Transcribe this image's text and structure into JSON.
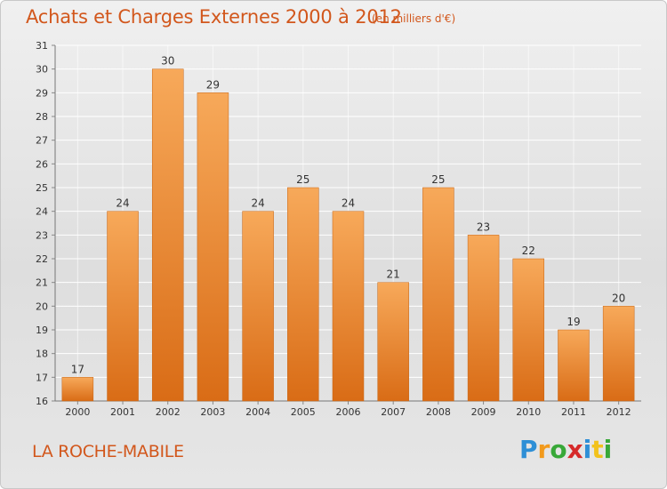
{
  "title": "Achats et Charges Externes 2000 à 2012",
  "subtitle": "(en milliers d'€)",
  "location": "LA ROCHE-MABILE",
  "logo": {
    "text": "Proxiti"
  },
  "colors": {
    "bar_light": "#f7a95a",
    "bar_dark": "#d96c16",
    "accent_text": "#d2571c",
    "grid": "#ffffff"
  },
  "chart_data": {
    "type": "bar",
    "title": "Achats et Charges Externes 2000 à 2012",
    "subtitle": "(en milliers d'€)",
    "xlabel": "",
    "ylabel": "",
    "categories": [
      "2000",
      "2001",
      "2002",
      "2003",
      "2004",
      "2005",
      "2006",
      "2007",
      "2008",
      "2009",
      "2010",
      "2011",
      "2012"
    ],
    "values": [
      17,
      24,
      30,
      29,
      24,
      25,
      24,
      21,
      25,
      23,
      22,
      19,
      20
    ],
    "ylim": [
      16,
      31
    ],
    "y_ticks": [
      "16",
      "17",
      "18",
      "19",
      "20",
      "21",
      "22",
      "23",
      "24",
      "25",
      "26",
      "27",
      "28",
      "29",
      "30",
      "31"
    ],
    "grid": true,
    "data_labels": true
  }
}
